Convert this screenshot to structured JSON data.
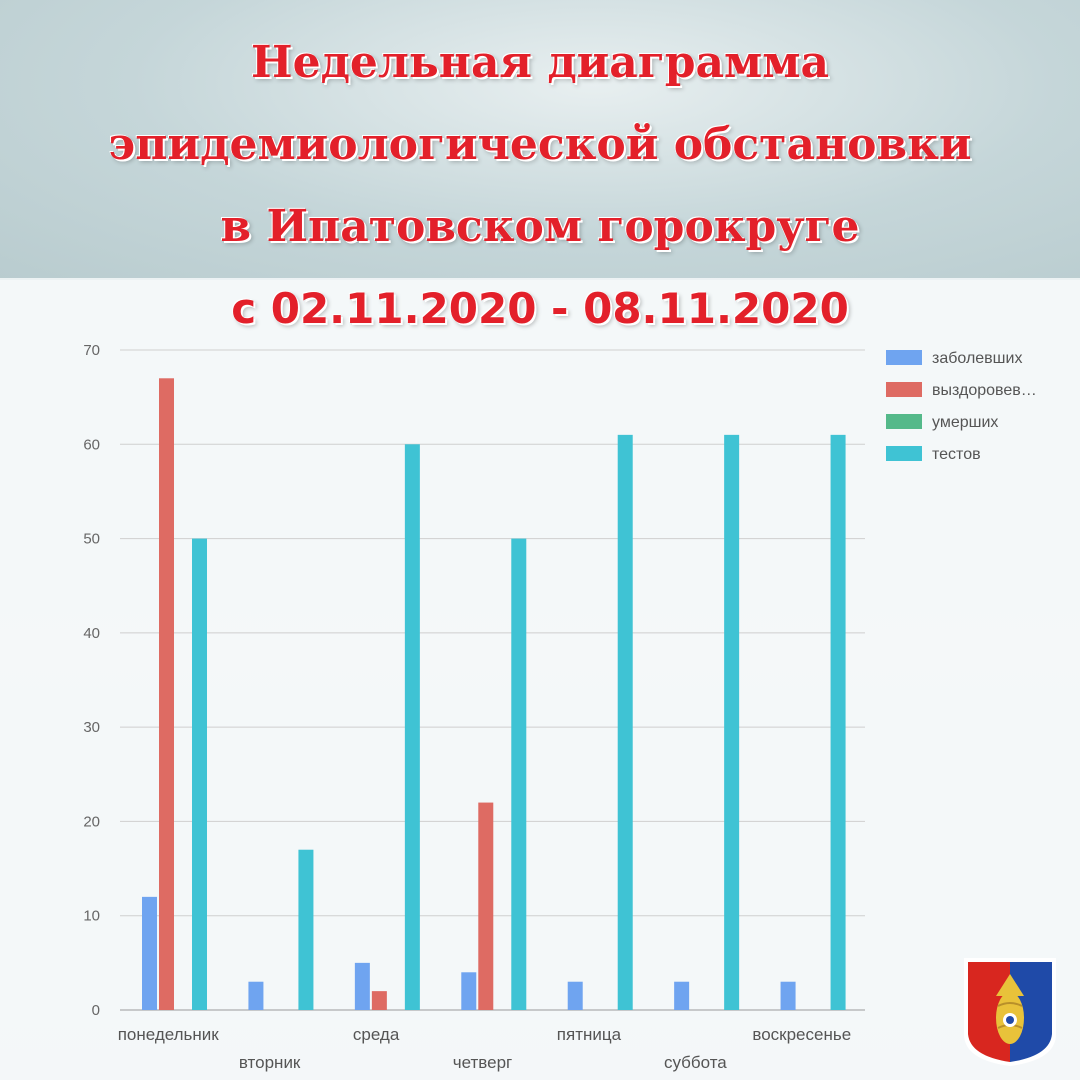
{
  "title": {
    "line1": "Недельная диаграмма",
    "line2": "эпидемиологической обстановки",
    "line3": "в Ипатовском горокруге",
    "line4": "с 02.11.2020 - 08.11.2020"
  },
  "chart_data": {
    "type": "bar",
    "categories": [
      "понедельник",
      "вторник",
      "среда",
      "четверг",
      "пятница",
      "суббота",
      "воскресенье"
    ],
    "series": [
      {
        "name": "заболевших",
        "legend_label": "заболевших",
        "color": "#6fa4f0",
        "values": [
          12,
          3,
          5,
          4,
          3,
          3,
          3
        ]
      },
      {
        "name": "выздоровевших",
        "legend_label": "выздоровев…",
        "color": "#de6b63",
        "values": [
          67,
          0,
          2,
          22,
          0,
          0,
          0
        ]
      },
      {
        "name": "умерших",
        "legend_label": "умерших",
        "color": "#54b98a",
        "values": [
          0,
          0,
          0,
          0,
          0,
          0,
          0
        ]
      },
      {
        "name": "тестов",
        "legend_label": "тестов",
        "color": "#3fc3d4",
        "values": [
          50,
          17,
          60,
          50,
          61,
          61,
          61
        ]
      }
    ],
    "yticks": [
      0,
      10,
      20,
      30,
      40,
      50,
      60,
      70
    ],
    "ylim": [
      0,
      70
    ],
    "grid": true,
    "legend_position": "top-right"
  },
  "emblem": {
    "colors": {
      "left": "#d8261f",
      "right": "#1f4aa8",
      "gold": "#e8c23a"
    },
    "icon": "coat-of-arms-icon"
  }
}
